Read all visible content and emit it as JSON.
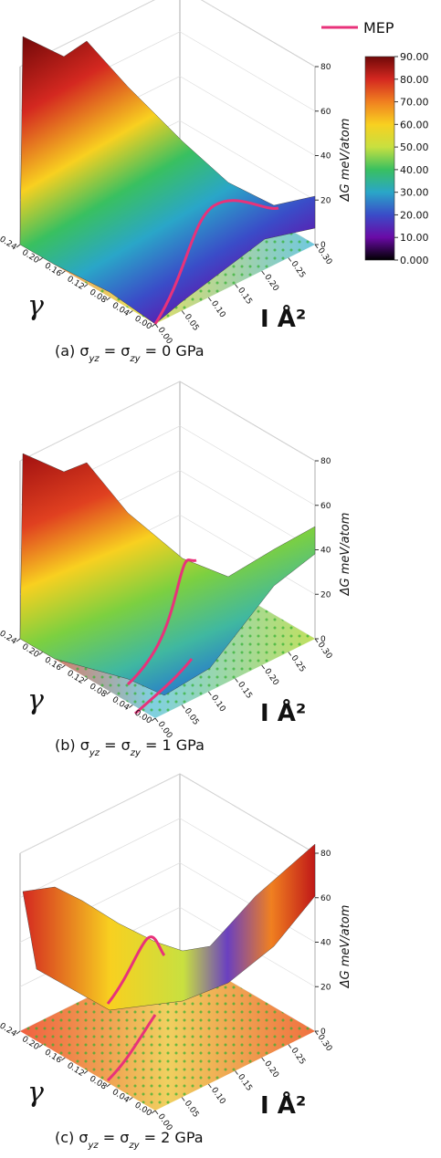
{
  "legend": {
    "label": "MEP",
    "color": "#e8327a"
  },
  "colorbar": {
    "lim": [
      0,
      90
    ],
    "colors": [
      "#000000",
      "#6a0aa6",
      "#3a4cc8",
      "#2aa6c8",
      "#39c060",
      "#c8e040",
      "#f8d020",
      "#f08020",
      "#d42820",
      "#700808"
    ],
    "ticks": [
      {
        "value": 90,
        "label": "90.00"
      },
      {
        "value": 80,
        "label": "80.00"
      },
      {
        "value": 70,
        "label": "70.00"
      },
      {
        "value": 60,
        "label": "60.00"
      },
      {
        "value": 50,
        "label": "50.00"
      },
      {
        "value": 40,
        "label": "40.00"
      },
      {
        "value": 30,
        "label": "30.00"
      },
      {
        "value": 20,
        "label": "20.00"
      },
      {
        "value": 10,
        "label": "10.00"
      },
      {
        "value": 0,
        "label": "0.000"
      }
    ]
  },
  "chart_data": [
    {
      "type": "surface3d",
      "caption": [
        "(a) σ",
        "yz",
        " =  σ",
        "zy",
        " = 0 GPa"
      ],
      "xlabel": "γ",
      "ylabel": "I Å²",
      "zlabel": "ΔG meV/atom",
      "xlim": [
        0,
        0.24
      ],
      "xticks": [
        {
          "value": 0,
          "label": "0.00"
        },
        0.04,
        0.08,
        0.12,
        0.16,
        {
          "value": 0.2,
          "label": "0.20"
        },
        0.24
      ],
      "ylim": [
        0,
        0.3
      ],
      "yticks": [
        {
          "value": 0,
          "label": "0.00"
        },
        0.05,
        {
          "value": 0.1,
          "label": "0.10"
        },
        0.15,
        {
          "value": 0.2,
          "label": "0.20"
        },
        0.25,
        {
          "value": 0.3,
          "label": "0.30"
        }
      ],
      "zlim": [
        0,
        80
      ],
      "zticks": [
        0,
        20,
        40,
        60,
        80
      ]
    },
    {
      "type": "surface3d",
      "caption": [
        "(b) σ",
        "yz",
        " =  σ",
        "zy",
        " = 1 GPa"
      ],
      "xlabel": "γ",
      "ylabel": "I Å²",
      "zlabel": "ΔG meV/atom",
      "xlim": [
        0,
        0.24
      ],
      "xticks": [
        {
          "value": 0,
          "label": "0.00"
        },
        0.04,
        0.08,
        0.12,
        0.16,
        {
          "value": 0.2,
          "label": "0.20"
        },
        0.24
      ],
      "ylim": [
        0,
        0.3
      ],
      "yticks": [
        {
          "value": 0,
          "label": "0.00"
        },
        0.05,
        {
          "value": 0.1,
          "label": "0.10"
        },
        0.15,
        {
          "value": 0.2,
          "label": "0.20"
        },
        0.25,
        {
          "value": 0.3,
          "label": "0.30"
        }
      ],
      "zlim": [
        0,
        80
      ],
      "zticks": [
        0,
        20,
        40,
        60,
        80
      ]
    },
    {
      "type": "surface3d",
      "caption": [
        "(c) σ",
        "yz",
        " = σ",
        "zy",
        " = 2 GPa"
      ],
      "xlabel": "γ",
      "ylabel": "I Å²",
      "zlabel": "ΔG meV/atom",
      "xlim": [
        0,
        0.24
      ],
      "xticks": [
        {
          "value": 0,
          "label": "0.00"
        },
        0.04,
        0.08,
        0.12,
        0.16,
        {
          "value": 0.2,
          "label": "0.20"
        },
        0.24
      ],
      "ylim": [
        0,
        0.3
      ],
      "yticks": [
        {
          "value": 0,
          "label": "0.00"
        },
        0.05,
        {
          "value": 0.1,
          "label": "0.10"
        },
        0.15,
        {
          "value": 0.2,
          "label": "0.20"
        },
        0.25,
        {
          "value": 0.3,
          "label": "0.30"
        }
      ],
      "zlim": [
        0,
        80
      ],
      "zticks": [
        0,
        20,
        40,
        60,
        80
      ]
    }
  ]
}
